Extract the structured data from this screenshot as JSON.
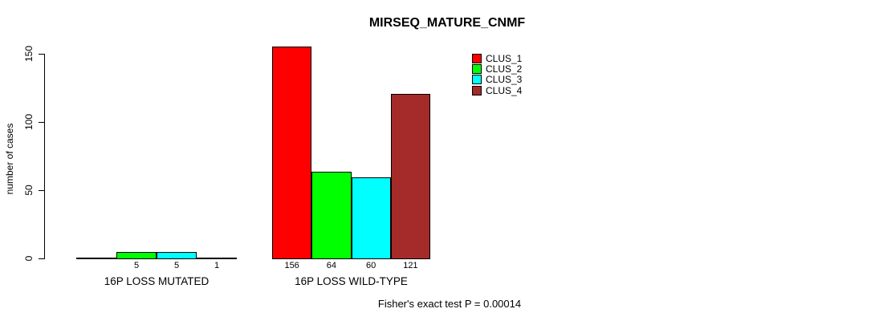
{
  "chart_data": {
    "type": "bar",
    "title": "MIRSEQ_MATURE_CNMF",
    "xlabel": "",
    "ylabel": "number of cases",
    "ylim": [
      0,
      150
    ],
    "yticks": [
      0,
      50,
      100,
      150
    ],
    "grid": false,
    "legend_position": "top-right",
    "annotation": "Fisher's exact test P = 0.00014",
    "categories": [
      "16P LOSS MUTATED",
      "16P LOSS WILD-TYPE"
    ],
    "series": [
      {
        "name": "CLUS_1",
        "color": "#ff0000",
        "values": [
          0,
          156
        ],
        "labels": [
          "",
          "156"
        ]
      },
      {
        "name": "CLUS_2",
        "color": "#00ff00",
        "values": [
          5,
          64
        ],
        "labels": [
          "5",
          "64"
        ]
      },
      {
        "name": "CLUS_3",
        "color": "#00ffff",
        "values": [
          5,
          60
        ],
        "labels": [
          "5",
          "60"
        ]
      },
      {
        "name": "CLUS_4",
        "color": "#a52a2a",
        "values": [
          1,
          121
        ],
        "labels": [
          "1",
          "121"
        ]
      }
    ],
    "bar_border_color": "#000000",
    "axis_color": "#000000"
  }
}
